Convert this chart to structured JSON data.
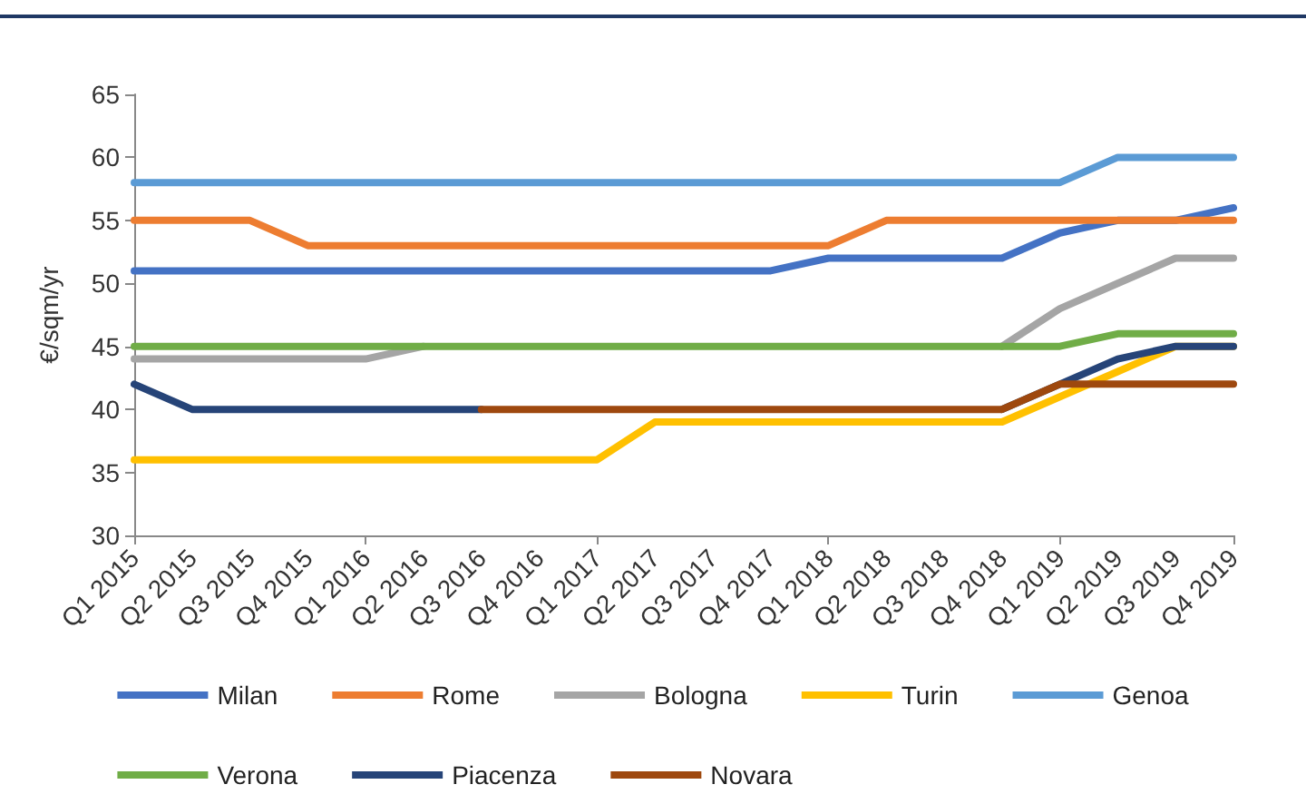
{
  "chart_data": {
    "type": "line",
    "ylabel": "€/sqm/yr",
    "categories": [
      "Q1 2015",
      "Q2 2015",
      "Q3 2015",
      "Q4 2015",
      "Q1 2016",
      "Q2 2016",
      "Q3 2016",
      "Q4 2016",
      "Q1 2017",
      "Q2 2017",
      "Q3 2017",
      "Q4 2017",
      "Q1 2018",
      "Q2 2018",
      "Q3 2018",
      "Q4 2018",
      "Q1 2019",
      "Q2 2019",
      "Q3 2019",
      "Q4 2019"
    ],
    "series": [
      {
        "name": "Milan",
        "color": "#4472c4",
        "values": [
          51,
          51,
          51,
          51,
          51,
          51,
          51,
          51,
          51,
          51,
          51,
          51,
          52,
          52,
          52,
          52,
          54,
          55,
          55,
          56
        ]
      },
      {
        "name": "Rome",
        "color": "#ed7d31",
        "values": [
          55,
          55,
          55,
          53,
          53,
          53,
          53,
          53,
          53,
          53,
          53,
          53,
          53,
          55,
          55,
          55,
          55,
          55,
          55,
          55
        ]
      },
      {
        "name": "Bologna",
        "color": "#a5a5a5",
        "values": [
          44,
          44,
          44,
          44,
          44,
          45,
          null,
          null,
          null,
          null,
          null,
          null,
          null,
          null,
          null,
          45,
          48,
          50,
          52,
          52
        ]
      },
      {
        "name": "Turin",
        "color": "#ffc000",
        "values": [
          36,
          36,
          36,
          36,
          36,
          36,
          36,
          36,
          36,
          39,
          39,
          39,
          39,
          39,
          39,
          39,
          41,
          43,
          45,
          45
        ]
      },
      {
        "name": "Genoa",
        "color": "#5b9bd5",
        "values": [
          58,
          58,
          58,
          58,
          58,
          58,
          58,
          58,
          58,
          58,
          58,
          58,
          58,
          58,
          58,
          58,
          58,
          60,
          60,
          60
        ]
      },
      {
        "name": "Verona",
        "color": "#70ad47",
        "values": [
          45,
          45,
          45,
          45,
          45,
          45,
          45,
          45,
          45,
          45,
          45,
          45,
          45,
          45,
          45,
          45,
          45,
          46,
          46,
          46
        ]
      },
      {
        "name": "Piacenza",
        "color": "#264478",
        "values": [
          42,
          40,
          40,
          40,
          40,
          40,
          40,
          null,
          null,
          null,
          null,
          null,
          null,
          null,
          null,
          40,
          42,
          44,
          45,
          45
        ]
      },
      {
        "name": "Novara",
        "color": "#9e480e",
        "values": [
          null,
          null,
          null,
          null,
          null,
          null,
          40,
          40,
          40,
          40,
          40,
          40,
          40,
          40,
          40,
          40,
          42,
          42,
          42,
          42
        ]
      }
    ],
    "ylim": [
      30,
      65
    ],
    "yticks": [
      30,
      35,
      40,
      45,
      50,
      55,
      60,
      65
    ],
    "grid": false,
    "legend": "bottom",
    "marker": "none",
    "line_style": "solid"
  }
}
